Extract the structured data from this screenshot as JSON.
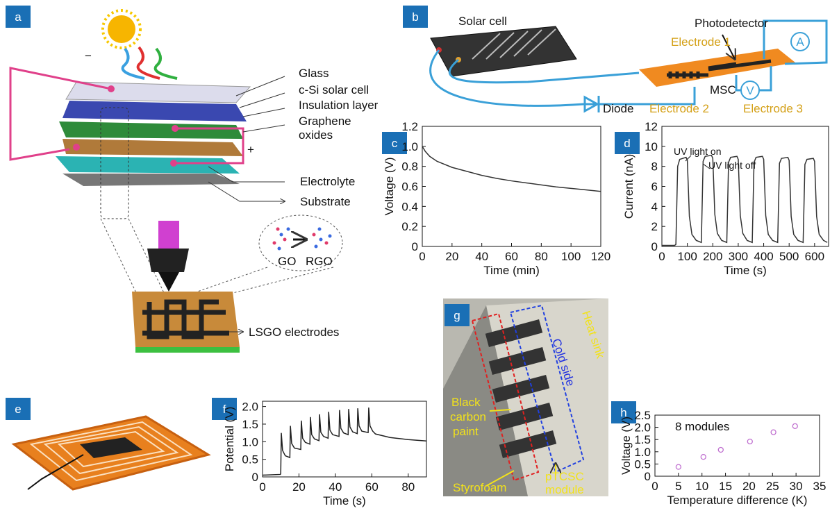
{
  "panel_labels": [
    "a",
    "b",
    "c",
    "d",
    "e",
    "f",
    "g",
    "h"
  ],
  "figure_a": {
    "layer_labels": [
      "Glass",
      "c-Si solar cell",
      "Insulation layer"
    ],
    "graphene_label": [
      "Graphene",
      "oxides"
    ],
    "lower_labels": [
      "Electrolyte",
      "Substrate"
    ],
    "electrode_label": "LSGO electrodes",
    "polarity": [
      "−",
      "+"
    ],
    "conversion": [
      "GO",
      "RGO"
    ]
  },
  "figure_b": {
    "solar_cell": "Solar cell",
    "photodetector": "Photodetector",
    "electrodes": [
      "Electrode 1",
      "Electrode 2",
      "Electrode 3"
    ],
    "msc": "MSC",
    "diode": "Diode",
    "meters": [
      "A",
      "V"
    ]
  },
  "figure_g": {
    "heat_sink": "Heat sink",
    "cold_side": "Cold side",
    "paint": [
      "Black",
      "carbon",
      "paint"
    ],
    "styrofoam": "Styrofoam",
    "module": [
      "pTCSC",
      "module"
    ]
  },
  "chart_data": [
    {
      "type": "line",
      "xlabel": "Time (min)",
      "ylabel": "Voltage (V)",
      "xlim": [
        0,
        120
      ],
      "ylim": [
        0,
        1.2
      ],
      "xticks": [
        0,
        20,
        40,
        60,
        80,
        100,
        120
      ],
      "yticks": [
        0,
        0.2,
        0.4,
        0.6,
        0.8,
        {
          "value": 1,
          "label": "1.0"
        },
        1.2
      ],
      "series": [
        {
          "color": "#333333",
          "x": [
            0,
            2,
            5,
            10,
            20,
            30,
            40,
            50,
            60,
            70,
            80,
            90,
            100,
            110,
            120
          ],
          "values": [
            1.0,
            0.95,
            0.9,
            0.85,
            0.79,
            0.75,
            0.71,
            0.68,
            0.655,
            0.635,
            0.615,
            0.595,
            0.58,
            0.565,
            0.55
          ]
        }
      ]
    },
    {
      "type": "line",
      "xlabel": "Time (s)",
      "ylabel": "Current (nA)",
      "xlim": [
        0,
        655
      ],
      "ylim": [
        0,
        12
      ],
      "xticks": [
        0,
        100,
        200,
        300,
        400,
        500,
        600
      ],
      "yticks": [
        0,
        2,
        4,
        6,
        8,
        10,
        12
      ],
      "annotations": [
        "UV light on",
        "UV light off"
      ],
      "series": [
        {
          "color": "#333333",
          "x": [
            0,
            50,
            55,
            62,
            70,
            95,
            100,
            108,
            118,
            135,
            155,
            162,
            170,
            195,
            200,
            208,
            218,
            235,
            255,
            262,
            270,
            295,
            300,
            308,
            318,
            335,
            355,
            362,
            370,
            395,
            400,
            408,
            418,
            435,
            455,
            462,
            470,
            495,
            500,
            508,
            518,
            535,
            555,
            562,
            570,
            595,
            600,
            608,
            618,
            635,
            650
          ],
          "values": [
            0.1,
            0.1,
            0.2,
            8.0,
            8.7,
            8.9,
            8.6,
            3.0,
            1.2,
            0.6,
            0.4,
            8.5,
            9.0,
            9.1,
            8.8,
            3.2,
            1.3,
            0.6,
            0.4,
            8.4,
            8.9,
            9.0,
            8.7,
            3.1,
            1.3,
            0.6,
            0.4,
            8.4,
            8.9,
            9.0,
            8.7,
            3.1,
            1.2,
            0.6,
            0.4,
            8.3,
            8.8,
            8.9,
            8.6,
            3.0,
            1.2,
            0.6,
            0.4,
            8.2,
            8.7,
            8.8,
            8.5,
            3.0,
            1.2,
            0.6,
            0.4
          ]
        }
      ]
    },
    {
      "type": "line",
      "xlabel": "Time (s)",
      "ylabel": "Potential (V)",
      "xlim": [
        0,
        90
      ],
      "ylim": [
        0,
        2.15
      ],
      "xticks": [
        0,
        20,
        40,
        60,
        80
      ],
      "yticks": [
        0,
        0.5,
        {
          "value": 1,
          "label": "1.0"
        },
        1.5,
        {
          "value": 2,
          "label": "2.0"
        }
      ],
      "series": [
        {
          "color": "#222222",
          "x": [
            0,
            9.8,
            10,
            10.3,
            11,
            12.5,
            15,
            15.3,
            16,
            17.5,
            21,
            21.3,
            22,
            23.5,
            26,
            26.3,
            27,
            28.5,
            31,
            31.3,
            32,
            33.5,
            36,
            36.3,
            37,
            38.5,
            42,
            42.3,
            43,
            44.5,
            47,
            47.3,
            48,
            49.5,
            52,
            52.3,
            53,
            54.5,
            58,
            58.3,
            59,
            60.5,
            62,
            70,
            80,
            90
          ],
          "values": [
            0.05,
            0.07,
            0.1,
            1.25,
            0.75,
            0.6,
            0.55,
            1.45,
            0.95,
            0.82,
            0.78,
            1.6,
            1.1,
            0.98,
            0.93,
            1.7,
            1.2,
            1.08,
            1.03,
            1.78,
            1.27,
            1.15,
            1.1,
            1.85,
            1.33,
            1.2,
            1.15,
            1.9,
            1.38,
            1.25,
            1.2,
            1.93,
            1.42,
            1.28,
            1.23,
            1.95,
            1.45,
            1.3,
            1.26,
            1.97,
            1.45,
            1.3,
            1.22,
            1.12,
            1.06,
            1.02
          ]
        }
      ]
    },
    {
      "type": "scatter",
      "xlabel": "Temperature difference (K)",
      "ylabel": "Voltage (V)",
      "xlim": [
        0,
        35
      ],
      "ylim": [
        0,
        2.5
      ],
      "xticks": [
        0,
        5,
        10,
        15,
        20,
        25,
        30,
        35
      ],
      "yticks": [
        0,
        0.5,
        {
          "value": 1,
          "label": "1.0"
        },
        1.5,
        {
          "value": 2,
          "label": "2.0"
        },
        2.5
      ],
      "annotations": [
        "8 modules"
      ],
      "series": [
        {
          "color": "#c070d0",
          "x": [
            5,
            10.3,
            14,
            20.2,
            25.2,
            29.8
          ],
          "values": [
            0.38,
            0.79,
            1.08,
            1.42,
            1.8,
            2.05
          ]
        }
      ]
    }
  ]
}
